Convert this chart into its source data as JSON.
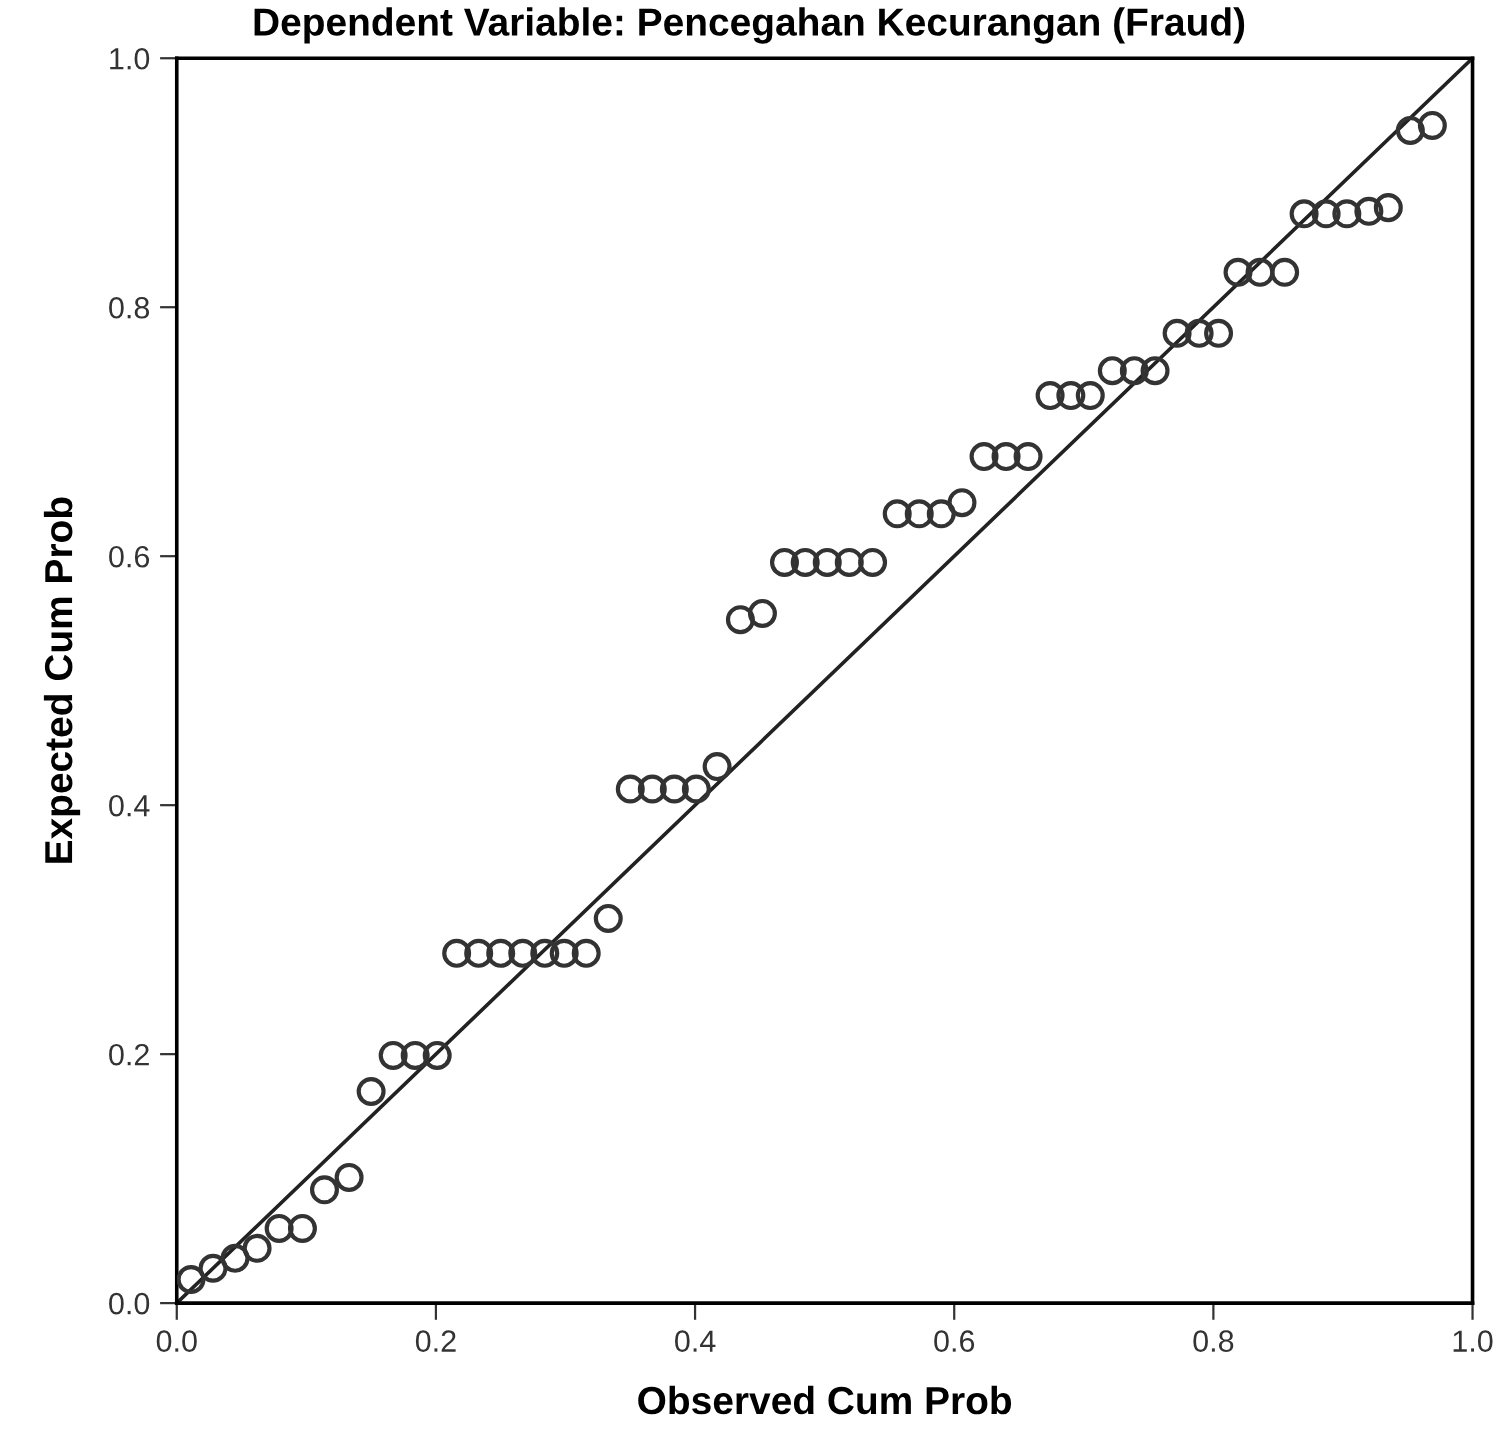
{
  "chart_data": {
    "type": "scatter",
    "title": "Dependent Variable: Pencegahan Kecurangan (Fraud)",
    "xlabel": "Observed Cum Prob",
    "ylabel": "Expected Cum Prob",
    "xlim": [
      0,
      1
    ],
    "ylim": [
      0,
      1
    ],
    "xticks": [
      {
        "value": 0,
        "label": "0.0"
      },
      {
        "value": 0.2,
        "label": "0.2"
      },
      {
        "value": 0.4,
        "label": "0.4"
      },
      {
        "value": 0.6,
        "label": "0.6"
      },
      {
        "value": 0.8,
        "label": "0.8"
      },
      {
        "value": 1,
        "label": "1.0"
      }
    ],
    "yticks": [
      {
        "value": 0,
        "label": "0.0"
      },
      {
        "value": 0.2,
        "label": "0.2"
      },
      {
        "value": 0.4,
        "label": "0.4"
      },
      {
        "value": 0.6,
        "label": "0.6"
      },
      {
        "value": 0.8,
        "label": "0.8"
      },
      {
        "value": 1,
        "label": "1.0"
      }
    ],
    "grid": false,
    "legend": false,
    "marker": "circle",
    "series": [
      {
        "color": "#333333",
        "x": [
          0.011,
          0.028,
          0.045,
          0.062,
          0.079,
          0.097,
          0.114,
          0.133,
          0.15,
          0.167,
          0.184,
          0.201,
          0.216,
          0.233,
          0.25,
          0.267,
          0.284,
          0.299,
          0.316,
          0.333,
          0.35,
          0.367,
          0.384,
          0.401,
          0.417,
          0.435,
          0.452,
          0.469,
          0.485,
          0.502,
          0.519,
          0.537,
          0.556,
          0.573,
          0.59,
          0.606,
          0.623,
          0.64,
          0.657,
          0.674,
          0.69,
          0.705,
          0.722,
          0.739,
          0.755,
          0.772,
          0.789,
          0.804,
          0.819,
          0.836,
          0.855,
          0.87,
          0.887,
          0.903,
          0.92,
          0.935,
          0.952,
          0.969
        ],
        "values": [
          0.019,
          0.028,
          0.036,
          0.044,
          0.06,
          0.06,
          0.091,
          0.101,
          0.17,
          0.199,
          0.199,
          0.199,
          0.281,
          0.281,
          0.281,
          0.281,
          0.281,
          0.281,
          0.281,
          0.309,
          0.413,
          0.413,
          0.413,
          0.413,
          0.431,
          0.549,
          0.554,
          0.595,
          0.595,
          0.595,
          0.595,
          0.595,
          0.634,
          0.634,
          0.634,
          0.643,
          0.68,
          0.68,
          0.68,
          0.729,
          0.729,
          0.729,
          0.749,
          0.749,
          0.749,
          0.779,
          0.779,
          0.779,
          0.828,
          0.828,
          0.828,
          0.875,
          0.875,
          0.875,
          0.877,
          0.88,
          0.942,
          0.946
        ]
      },
      {
        "type": "line",
        "color": "#222222",
        "marker": "none",
        "line_style": "solid",
        "x": [
          0,
          1
        ],
        "values": [
          0,
          1
        ]
      }
    ]
  }
}
